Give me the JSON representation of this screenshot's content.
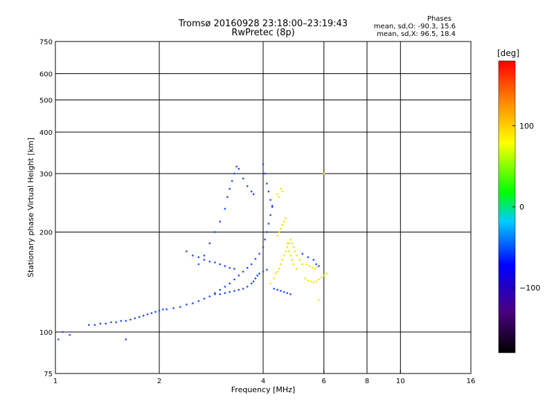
{
  "header": {
    "title": "Tromsø 20160928 23:18:00–23:19:43",
    "subtitle": "RwPretec (8p)",
    "phases_label": "Phases",
    "stats_o": "mean, sd,O: -90.3, 15.6",
    "stats_x": "mean, sd,X:  96.5, 18.4"
  },
  "colorbar": {
    "unit": "[deg]",
    "tick_labels": [
      "100",
      "0",
      "−100"
    ],
    "tick_values": [
      100,
      0,
      -100
    ],
    "range": [
      -180,
      180
    ],
    "stops": [
      "#000000",
      "#4b0082",
      "#0000ff",
      "#00ccff",
      "#00ff00",
      "#ffff00",
      "#ff8800",
      "#ff0000"
    ]
  },
  "chart_data": {
    "type": "scatter",
    "xlabel": "Frequency [MHz]",
    "ylabel": "Stationary phase Virtual Height [km]",
    "xscale": "log",
    "yscale": "log",
    "xlim": [
      1,
      16
    ],
    "ylim": [
      75,
      750
    ],
    "xticks": [
      1,
      2,
      4,
      6,
      8,
      10,
      16
    ],
    "xtick_labels": [
      "1",
      "2",
      "4",
      "6",
      "8",
      "10",
      "16"
    ],
    "xgrid": [
      2,
      4,
      6,
      8,
      10
    ],
    "yticks": [
      75,
      100,
      200,
      300,
      400,
      500,
      600,
      750
    ],
    "ytick_labels": [
      "75",
      "100",
      "200",
      "300",
      "400",
      "500",
      "600",
      "750"
    ],
    "ygrid": [
      100,
      200,
      300,
      400,
      500,
      600
    ],
    "grid": true,
    "series": [
      {
        "mode": "O",
        "phase_mean": -90.3,
        "color": "#1c4cff",
        "x": [
          1.25,
          1.3,
          1.35,
          1.4,
          1.45,
          1.5,
          1.55,
          1.6,
          1.65,
          1.7,
          1.75,
          1.8,
          1.85,
          1.9,
          1.95,
          2.0,
          2.05,
          2.1,
          2.2,
          2.3,
          2.4,
          2.5,
          2.6,
          2.7,
          2.8,
          2.9,
          3.0,
          3.1,
          3.2,
          3.3,
          3.4,
          3.5,
          3.6,
          3.7,
          3.8,
          3.9,
          4.0,
          4.05,
          4.1,
          4.15,
          4.2,
          4.25,
          2.9,
          3.0,
          3.1,
          3.2,
          3.3,
          3.4,
          3.5,
          3.6,
          3.7,
          3.75,
          3.8,
          3.85,
          3.9,
          4.0,
          4.1,
          2.6,
          2.7,
          2.8,
          2.9,
          3.0,
          3.1,
          3.15,
          3.2,
          3.25,
          3.3,
          3.35,
          3.4,
          3.5,
          3.6,
          3.7,
          3.75,
          4.0,
          4.05,
          4.1,
          4.15,
          4.2,
          4.25,
          2.4,
          2.5,
          2.6,
          2.7,
          2.8,
          2.9,
          3.0,
          3.1,
          3.2,
          3.3,
          4.3,
          4.4,
          4.5,
          4.6,
          4.7,
          4.8,
          5.2,
          5.4,
          5.6,
          5.7,
          5.8,
          1.02,
          1.05,
          1.1,
          1.6
        ],
        "y": [
          105,
          105,
          106,
          106,
          107,
          107,
          108,
          108,
          109,
          110,
          111,
          112,
          113,
          114,
          115,
          116,
          117,
          117,
          118,
          119,
          121,
          122,
          124,
          126,
          128,
          131,
          134,
          137,
          140,
          144,
          148,
          152,
          156,
          160,
          166,
          172,
          180,
          190,
          200,
          212,
          225,
          238,
          130,
          130,
          131,
          132,
          133,
          134,
          135,
          137,
          140,
          142,
          145,
          148,
          150,
          152,
          154,
          160,
          170,
          185,
          200,
          215,
          235,
          255,
          270,
          285,
          300,
          315,
          310,
          290,
          275,
          265,
          260,
          320,
          300,
          280,
          265,
          250,
          240,
          175,
          170,
          168,
          165,
          163,
          162,
          160,
          158,
          156,
          155,
          135,
          134,
          133,
          132,
          131,
          130,
          172,
          168,
          165,
          160,
          158,
          95,
          100,
          98,
          95
        ]
      },
      {
        "mode": "X",
        "phase_mean": 96.5,
        "color": "#f2e600",
        "x": [
          4.2,
          4.3,
          4.35,
          4.4,
          4.45,
          4.5,
          4.55,
          4.6,
          4.65,
          4.7,
          4.75,
          4.8,
          4.85,
          4.9,
          4.95,
          5.0,
          5.1,
          5.2,
          4.4,
          4.45,
          4.5,
          4.55,
          4.6,
          4.65,
          4.7,
          4.75,
          4.8,
          4.85,
          4.9,
          5.0,
          5.3,
          5.4,
          5.5,
          5.6,
          5.7,
          5.8,
          5.9,
          6.0,
          6.1,
          5.35,
          5.45,
          5.55,
          5.65,
          5.75,
          4.4,
          4.45,
          4.5,
          4.55,
          6.0,
          5.8
        ],
        "y": [
          140,
          145,
          150,
          152,
          155,
          160,
          165,
          170,
          175,
          180,
          185,
          190,
          185,
          180,
          175,
          170,
          165,
          160,
          195,
          200,
          205,
          210,
          215,
          220,
          185,
          175,
          170,
          165,
          160,
          155,
          145,
          143,
          142,
          141,
          142,
          144,
          146,
          148,
          150,
          160,
          158,
          156,
          155,
          157,
          260,
          255,
          270,
          265,
          300,
          125
        ]
      }
    ]
  }
}
